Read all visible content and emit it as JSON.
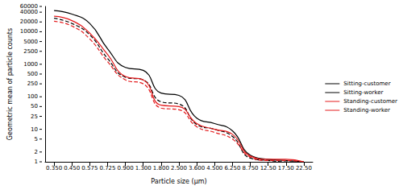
{
  "chart_data": {
    "type": "line",
    "x_label": "Particle size (μm)",
    "y_label": "Geometric mean of particle counts",
    "categories": [
      "0.350",
      "0.450",
      "0.575",
      "0.725",
      "0.900",
      "1.300",
      "1.800",
      "2.500",
      "3.600",
      "4.500",
      "6.250",
      "8.750",
      "12.50",
      "17.50",
      "22.50"
    ],
    "series": [
      {
        "name": "Sitting-customer",
        "color": "#000000",
        "line_style": "solid",
        "values": [
          45000,
          35000,
          18000,
          3000,
          800,
          650,
          130,
          110,
          22,
          15,
          9,
          1.6,
          1.2,
          1.1,
          1.0
        ]
      },
      {
        "name": "Sitting-worker",
        "color": "#000000",
        "line_style": "dashed",
        "values": [
          26000,
          18000,
          8000,
          1500,
          400,
          330,
          70,
          60,
          14,
          10,
          6,
          1.3,
          1.1,
          1.0,
          1.0
        ]
      },
      {
        "name": "Standing-customer",
        "color": "#e41a1c",
        "line_style": "solid",
        "values": [
          30000,
          22000,
          9000,
          2000,
          420,
          330,
          55,
          50,
          15,
          10,
          7,
          1.5,
          1.2,
          1.2,
          1.0
        ]
      },
      {
        "name": "Standing-worker",
        "color": "#e41a1c",
        "line_style": "dashed",
        "values": [
          21000,
          15000,
          6000,
          1200,
          330,
          250,
          45,
          40,
          12,
          8,
          5,
          1.4,
          1.1,
          1.1,
          1.0
        ]
      }
    ],
    "log": "y",
    "ylim": [
      1,
      60000
    ],
    "yticks": [
      1,
      2,
      5,
      10,
      25,
      50,
      100,
      250,
      500,
      1000,
      2500,
      5000,
      10000,
      20000,
      40000,
      60000
    ],
    "grid": false,
    "legend": "right"
  }
}
